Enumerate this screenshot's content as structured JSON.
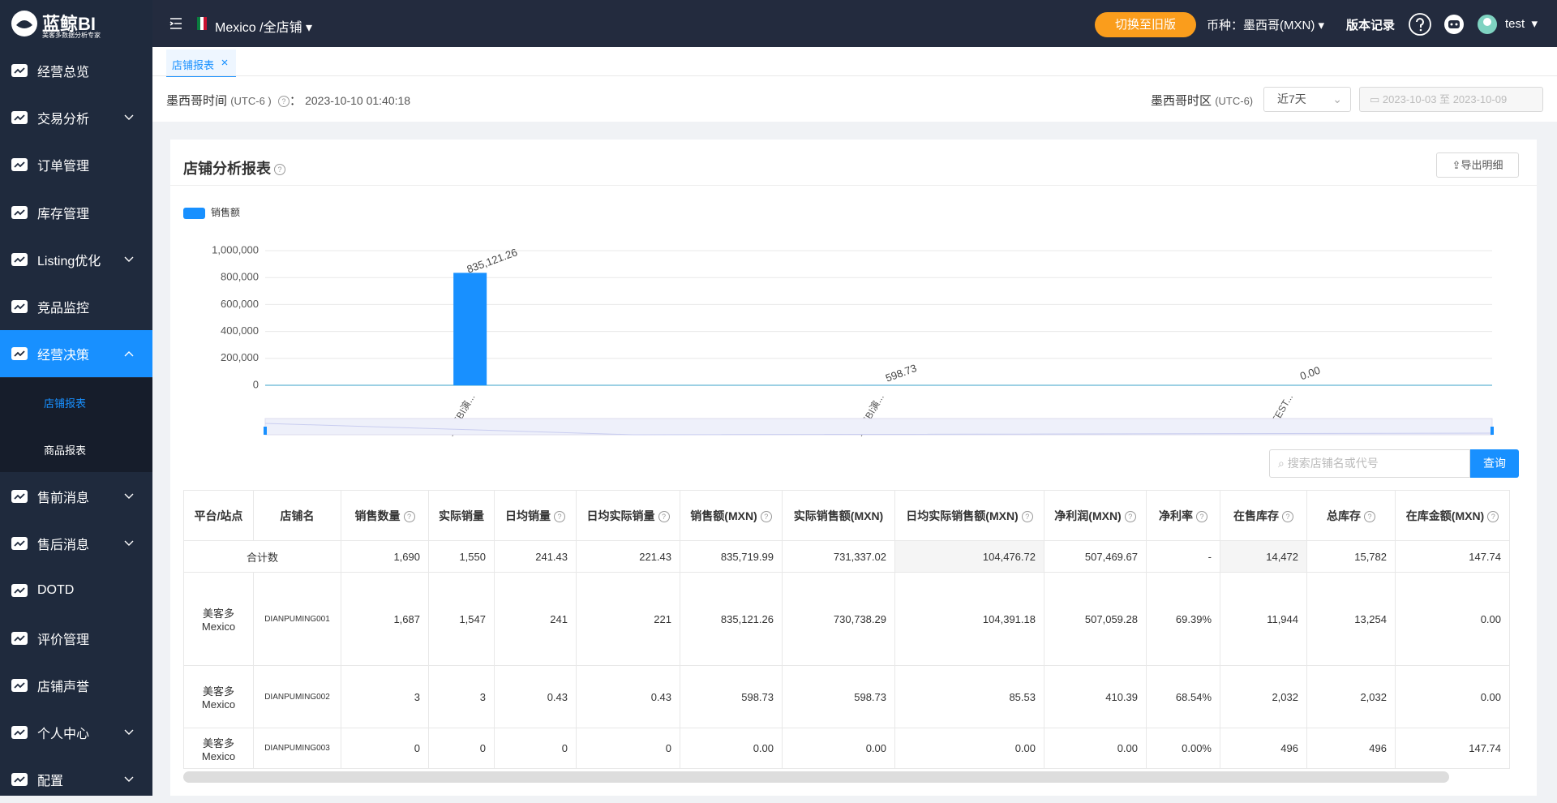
{
  "logo": {
    "title": "蓝鲸BI",
    "subtitle": "美客多数据分析专家"
  },
  "menu": [
    "经营总览",
    "交易分析",
    "订单管理",
    "库存管理",
    "Listing优化",
    "竞品监控",
    "经营决策",
    "售前消息",
    "售后消息",
    "DOTD",
    "评价管理",
    "店铺声誉",
    "个人中心",
    "配置"
  ],
  "submenu": [
    "店铺报表",
    "商品报表"
  ],
  "header": {
    "site": "Mexico /全店铺",
    "switch_button": "切换至旧版",
    "currency_label": "币种：",
    "currency": "墨西哥(MXN)",
    "changelog": "版本记录",
    "user": "test"
  },
  "tabs": [
    "店铺报表"
  ],
  "info": {
    "time_label": "墨西哥时间",
    "time_zone": "(UTC-6 )",
    "colon": "：",
    "time": "2023-10-10 01:40:18",
    "zone_label": "墨西哥时区",
    "zone": "(UTC-6)",
    "range": "近7天",
    "date_start": "2023-10-03",
    "date_sep": "至",
    "date_end": "2023-10-09"
  },
  "report": {
    "title": "店铺分析报表",
    "export": "导出明细",
    "chart": {
      "type": "bar",
      "legend": "销售额",
      "color": "#1890ff",
      "categories": [
        "蓝鲸BI演...",
        "蓝鲸BI演...",
        "-TEST..."
      ],
      "values": [
        835121.26,
        598.73,
        0
      ],
      "value_labels": [
        "835,121.26",
        "598.73",
        "0.00"
      ],
      "ylim": [
        0,
        1000000
      ],
      "yticks": [
        0,
        {
          "value": 200000,
          "label": "200,000"
        },
        {
          "value": 400000,
          "label": "400,000"
        },
        {
          "value": 600000,
          "label": "600,000"
        },
        {
          "value": 800000,
          "label": "800,000"
        },
        {
          "value": 1000000,
          "label": "1,000,000"
        }
      ],
      "grid": true
    },
    "search_placeholder": "搜索店铺名或代号",
    "search_button": "查询",
    "table": {
      "headers": [
        "平台/站点",
        "店铺名",
        "销售数量",
        "实际销量",
        "日均销量",
        "日均实际销量",
        "销售额(MXN)",
        "实际销售额(MXN)",
        "日均实际销售额(MXN)",
        "净利润(MXN)",
        "净利率",
        "在售库存",
        "总库存",
        "在库金额(MXN)"
      ],
      "total": {
        "label": "合计数",
        "cells": [
          "1,690",
          "1,550",
          "241.43",
          "221.43",
          "835,719.99",
          "731,337.02",
          "104,476.72",
          "507,469.67",
          "-",
          "14,472",
          "15,782",
          "147.74"
        ]
      },
      "rows": [
        [
          "美客多 Mexico",
          "DIANPUMING001",
          "1,687",
          "1,547",
          "241",
          "221",
          "835,121.26",
          "730,738.29",
          "104,391.18",
          "507,059.28",
          "69.39%",
          "11,944",
          "13,254",
          "0.00"
        ],
        [
          "美客多 Mexico",
          "DIANPUMING002",
          "3",
          "3",
          "0.43",
          "0.43",
          "598.73",
          "598.73",
          "85.53",
          "410.39",
          "68.54%",
          "2,032",
          "2,032",
          "0.00"
        ],
        [
          "美客多 Mexico",
          "DIANPUMING003",
          "0",
          "0",
          "0",
          "0",
          "0.00",
          "0.00",
          "0.00",
          "0.00",
          "0.00%",
          "496",
          "496",
          "147.74"
        ]
      ]
    }
  }
}
